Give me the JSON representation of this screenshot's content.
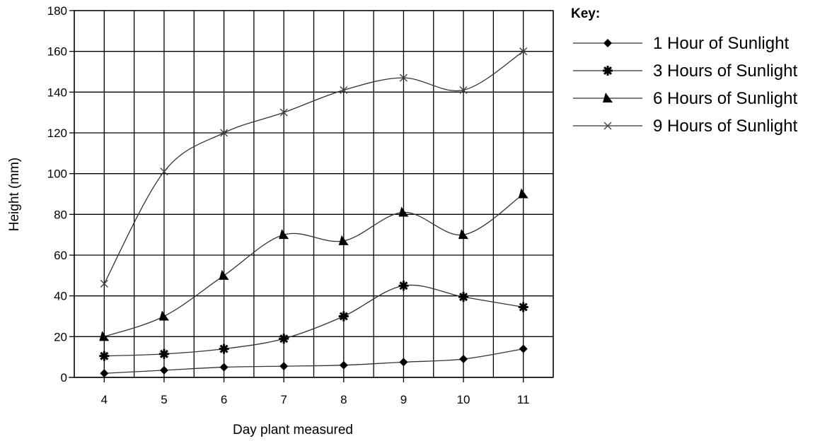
{
  "chart_data": {
    "type": "line",
    "xlabel": "Day plant measured",
    "ylabel": "Height (mm)",
    "xlim": [
      4,
      11
    ],
    "ylim": [
      0,
      180
    ],
    "x_ticks": [
      4,
      5,
      6,
      7,
      8,
      9,
      10,
      11
    ],
    "y_ticks": [
      0,
      20,
      40,
      60,
      80,
      100,
      120,
      140,
      160,
      180
    ],
    "grid": true,
    "legend_title": "Key:",
    "legend_position": "right",
    "x": [
      4,
      5,
      6,
      7,
      8,
      9,
      10,
      11
    ],
    "series": [
      {
        "name": "1 Hour of Sunlight",
        "marker": "diamond",
        "values": [
          2,
          3.5,
          5,
          5.5,
          6,
          7.5,
          9,
          14
        ]
      },
      {
        "name": "3 Hours of Sunlight",
        "marker": "asterisk",
        "values": [
          10.5,
          11.5,
          14,
          19,
          30,
          45,
          39.5,
          34.5
        ]
      },
      {
        "name": "6 Hours of Sunlight",
        "marker": "triangle",
        "values": [
          20,
          30,
          50,
          70,
          67,
          81,
          70,
          90
        ]
      },
      {
        "name": "9 Hours of Sunlight",
        "marker": "cross",
        "values": [
          46,
          101,
          120,
          130,
          141,
          147,
          141,
          160
        ]
      }
    ],
    "colors": {
      "line": "#333333",
      "grid": "#000000",
      "marker": "#000000"
    }
  }
}
